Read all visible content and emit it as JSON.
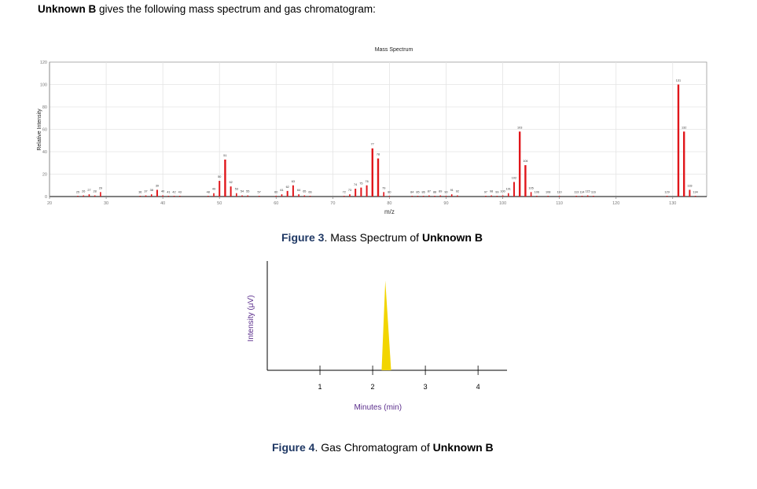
{
  "intro": {
    "lead": "Unknown B",
    "rest": " gives the following mass spectrum and gas chromatogram:"
  },
  "ms_caption": {
    "fig": "Figure 3",
    "mid": ". Mass Spectrum of ",
    "unk": "Unknown B"
  },
  "gc_caption": {
    "fig": "Figure 4",
    "mid": ". Gas Chromatogram of ",
    "unk": "Unknown B"
  },
  "colors": {
    "ms_bar": "#e0161b",
    "gc_peak": "#f2d500",
    "axis": "#000000",
    "grid": "#e4e4e4"
  },
  "chart_data": [
    {
      "type": "bar",
      "title": "Mass Spectrum",
      "xlabel": "m/z",
      "ylabel": "Relative Intensity",
      "xlim": [
        20,
        136
      ],
      "ylim": [
        0,
        120
      ],
      "xticks": [
        20,
        30,
        40,
        50,
        60,
        70,
        80,
        90,
        100,
        110,
        120,
        130
      ],
      "yticks": [
        0,
        20,
        40,
        60,
        80,
        100,
        120
      ],
      "grid": true,
      "peaks": [
        {
          "mz": 25,
          "i": 0.5
        },
        {
          "mz": 26,
          "i": 1
        },
        {
          "mz": 27,
          "i": 2
        },
        {
          "mz": 28,
          "i": 1
        },
        {
          "mz": 29,
          "i": 4
        },
        {
          "mz": 36,
          "i": 0.5
        },
        {
          "mz": 37,
          "i": 1
        },
        {
          "mz": 38,
          "i": 2
        },
        {
          "mz": 39,
          "i": 6
        },
        {
          "mz": 40,
          "i": 1
        },
        {
          "mz": 41,
          "i": 0.5
        },
        {
          "mz": 42,
          "i": 0.5
        },
        {
          "mz": 43,
          "i": 0.5
        },
        {
          "mz": 48,
          "i": 0.5
        },
        {
          "mz": 49,
          "i": 3
        },
        {
          "mz": 50,
          "i": 14
        },
        {
          "mz": 51,
          "i": 33
        },
        {
          "mz": 52,
          "i": 9
        },
        {
          "mz": 53,
          "i": 3
        },
        {
          "mz": 54,
          "i": 1
        },
        {
          "mz": 55,
          "i": 1
        },
        {
          "mz": 57,
          "i": 0.5
        },
        {
          "mz": 60,
          "i": 0.5
        },
        {
          "mz": 61,
          "i": 2
        },
        {
          "mz": 62,
          "i": 5
        },
        {
          "mz": 63,
          "i": 10
        },
        {
          "mz": 64,
          "i": 2
        },
        {
          "mz": 65,
          "i": 1
        },
        {
          "mz": 66,
          "i": 0.5
        },
        {
          "mz": 72,
          "i": 0.5
        },
        {
          "mz": 73,
          "i": 2
        },
        {
          "mz": 74,
          "i": 7
        },
        {
          "mz": 75,
          "i": 8
        },
        {
          "mz": 76,
          "i": 10
        },
        {
          "mz": 77,
          "i": 43
        },
        {
          "mz": 78,
          "i": 34
        },
        {
          "mz": 79,
          "i": 4
        },
        {
          "mz": 80,
          "i": 0.5
        },
        {
          "mz": 84,
          "i": 0.5
        },
        {
          "mz": 85,
          "i": 0.5
        },
        {
          "mz": 86,
          "i": 0.5
        },
        {
          "mz": 87,
          "i": 1
        },
        {
          "mz": 88,
          "i": 0.5
        },
        {
          "mz": 89,
          "i": 1
        },
        {
          "mz": 90,
          "i": 0.5
        },
        {
          "mz": 91,
          "i": 2
        },
        {
          "mz": 92,
          "i": 1
        },
        {
          "mz": 97,
          "i": 0.5
        },
        {
          "mz": 98,
          "i": 1
        },
        {
          "mz": 99,
          "i": 0.5
        },
        {
          "mz": 100,
          "i": 1
        },
        {
          "mz": 101,
          "i": 3
        },
        {
          "mz": 102,
          "i": 13
        },
        {
          "mz": 103,
          "i": 58
        },
        {
          "mz": 104,
          "i": 28
        },
        {
          "mz": 105,
          "i": 4
        },
        {
          "mz": 106,
          "i": 0.5
        },
        {
          "mz": 108,
          "i": 0.5
        },
        {
          "mz": 110,
          "i": 0.5
        },
        {
          "mz": 113,
          "i": 0.5
        },
        {
          "mz": 114,
          "i": 0.5
        },
        {
          "mz": 115,
          "i": 1
        },
        {
          "mz": 116,
          "i": 0.5
        },
        {
          "mz": 129,
          "i": 0.5
        },
        {
          "mz": 131,
          "i": 100
        },
        {
          "mz": 132,
          "i": 58
        },
        {
          "mz": 133,
          "i": 6
        },
        {
          "mz": 134,
          "i": 0.5
        }
      ],
      "labels": [
        {
          "t": "25",
          "mz": 25,
          "i": 0.5
        },
        {
          "t": "26",
          "mz": 26,
          "i": 1
        },
        {
          "t": "27",
          "mz": 27,
          "i": 2
        },
        {
          "t": "28",
          "mz": 28,
          "i": 1
        },
        {
          "t": "29",
          "mz": 29,
          "i": 4
        },
        {
          "t": "36",
          "mz": 36,
          "i": 0.5
        },
        {
          "t": "37",
          "mz": 37,
          "i": 1
        },
        {
          "t": "38",
          "mz": 38,
          "i": 2
        },
        {
          "t": "39",
          "mz": 39,
          "i": 6
        },
        {
          "t": "40",
          "mz": 40,
          "i": 1
        },
        {
          "t": "41",
          "mz": 41,
          "i": 0.5
        },
        {
          "t": "42",
          "mz": 42,
          "i": 0.5
        },
        {
          "t": "43",
          "mz": 43,
          "i": 0.5
        },
        {
          "t": "48",
          "mz": 48,
          "i": 0.5
        },
        {
          "t": "49",
          "mz": 49,
          "i": 3
        },
        {
          "t": "50",
          "mz": 50,
          "i": 14
        },
        {
          "t": "51",
          "mz": 51,
          "i": 33
        },
        {
          "t": "52",
          "mz": 52,
          "i": 9
        },
        {
          "t": "53",
          "mz": 53,
          "i": 3
        },
        {
          "t": "54",
          "mz": 54,
          "i": 1
        },
        {
          "t": "55",
          "mz": 55,
          "i": 1
        },
        {
          "t": "57",
          "mz": 57,
          "i": 0.5
        },
        {
          "t": "60",
          "mz": 60,
          "i": 0.5
        },
        {
          "t": "61",
          "mz": 61,
          "i": 2
        },
        {
          "t": "62",
          "mz": 62,
          "i": 5
        },
        {
          "t": "63",
          "mz": 63,
          "i": 10
        },
        {
          "t": "64",
          "mz": 64,
          "i": 2
        },
        {
          "t": "65",
          "mz": 65,
          "i": 1
        },
        {
          "t": "66",
          "mz": 66,
          "i": 0.5
        },
        {
          "t": "72",
          "mz": 72,
          "i": 0.5
        },
        {
          "t": "73",
          "mz": 73,
          "i": 2
        },
        {
          "t": "74",
          "mz": 74,
          "i": 7
        },
        {
          "t": "75",
          "mz": 75,
          "i": 8
        },
        {
          "t": "76",
          "mz": 76,
          "i": 10
        },
        {
          "t": "77",
          "mz": 77,
          "i": 43
        },
        {
          "t": "78",
          "mz": 78,
          "i": 34
        },
        {
          "t": "79",
          "mz": 79,
          "i": 4
        },
        {
          "t": "80",
          "mz": 80,
          "i": 0.5
        },
        {
          "t": "84",
          "mz": 84,
          "i": 0.5
        },
        {
          "t": "85",
          "mz": 85,
          "i": 0.5
        },
        {
          "t": "86",
          "mz": 86,
          "i": 0.5
        },
        {
          "t": "87",
          "mz": 87,
          "i": 1
        },
        {
          "t": "88",
          "mz": 88,
          "i": 0.5
        },
        {
          "t": "89",
          "mz": 89,
          "i": 1
        },
        {
          "t": "90",
          "mz": 90,
          "i": 0.5
        },
        {
          "t": "91",
          "mz": 91,
          "i": 2
        },
        {
          "t": "92",
          "mz": 92,
          "i": 1
        },
        {
          "t": "97",
          "mz": 97,
          "i": 0.5
        },
        {
          "t": "98",
          "mz": 98,
          "i": 1
        },
        {
          "t": "99",
          "mz": 99,
          "i": 0.5
        },
        {
          "t": "100",
          "mz": 100,
          "i": 1
        },
        {
          "t": "101",
          "mz": 101,
          "i": 3
        },
        {
          "t": "102",
          "mz": 102,
          "i": 13
        },
        {
          "t": "103",
          "mz": 103,
          "i": 58
        },
        {
          "t": "104",
          "mz": 104,
          "i": 28
        },
        {
          "t": "105",
          "mz": 105,
          "i": 4
        },
        {
          "t": "106",
          "mz": 106,
          "i": 0.5
        },
        {
          "t": "108",
          "mz": 108,
          "i": 0.5
        },
        {
          "t": "110",
          "mz": 110,
          "i": 0.5
        },
        {
          "t": "113",
          "mz": 113,
          "i": 0.5
        },
        {
          "t": "114",
          "mz": 114,
          "i": 0.5
        },
        {
          "t": "115",
          "mz": 115,
          "i": 1
        },
        {
          "t": "116",
          "mz": 116,
          "i": 0.5
        },
        {
          "t": "129",
          "mz": 129,
          "i": 0.5
        },
        {
          "t": "131",
          "mz": 131,
          "i": 100
        },
        {
          "t": "132",
          "mz": 132,
          "i": 58
        },
        {
          "t": "133",
          "mz": 133,
          "i": 6
        },
        {
          "t": "134",
          "mz": 134,
          "i": 0.5
        }
      ]
    },
    {
      "type": "area",
      "title": "",
      "xlabel": "Minutes (min)",
      "ylabel": "Intensity (μV)",
      "xlim": [
        0,
        4.55
      ],
      "xticks": [
        1,
        2,
        3,
        4
      ],
      "grid": false,
      "peak": {
        "start": 2.17,
        "apex": 2.24,
        "end": 2.35,
        "height": 0.82
      }
    }
  ]
}
